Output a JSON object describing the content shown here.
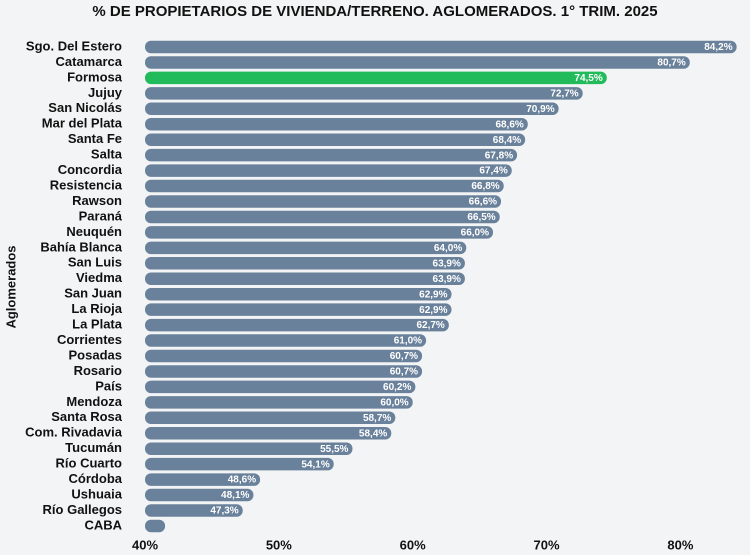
{
  "chart_data": {
    "type": "barh",
    "title": "% DE PROPIETARIOS DE VIVIENDA/TERRENO. AGLOMERADOS. 1° TRIM. 2025",
    "y_label": "Aglomerados",
    "categories": [
      "Sgo. Del Estero",
      "Catamarca",
      "Formosa",
      "Jujuy",
      "San Nicolás",
      "Mar del Plata",
      "Santa Fe",
      "Salta",
      "Concordia",
      "Resistencia",
      "Rawson",
      "Paraná",
      "Neuquén",
      "Bahía Blanca",
      "San Luis",
      "Viedma",
      "San Juan",
      "La Rioja",
      "La Plata",
      "Corrientes",
      "Posadas",
      "Rosario",
      "País",
      "Mendoza",
      "Santa Rosa",
      "Com. Rivadavia",
      "Tucumán",
      "Río Cuarto",
      "Córdoba",
      "Ushuaia",
      "Río Gallegos",
      "CABA"
    ],
    "values": [
      84.2,
      80.7,
      74.5,
      72.7,
      70.9,
      68.6,
      68.4,
      67.8,
      67.4,
      66.8,
      66.6,
      66.5,
      66.0,
      64.0,
      63.9,
      63.9,
      62.9,
      62.9,
      62.7,
      61.0,
      60.7,
      60.7,
      60.2,
      60.0,
      58.7,
      58.4,
      55.5,
      54.1,
      48.6,
      48.1,
      47.3,
      41.5
    ],
    "value_labels": [
      "84,2%",
      "80,7%",
      "74,5%",
      "72,7%",
      "70,9%",
      "68,6%",
      "68,4%",
      "67,8%",
      "67,4%",
      "66,8%",
      "66,6%",
      "66,5%",
      "66,0%",
      "64,0%",
      "63,9%",
      "63,9%",
      "62,9%",
      "62,9%",
      "62,7%",
      "61,0%",
      "60,7%",
      "60,7%",
      "60,2%",
      "60,0%",
      "58,7%",
      "58,4%",
      "55,5%",
      "54,1%",
      "48,6%",
      "48,1%",
      "47,3%",
      null
    ],
    "colors": [
      "#6a819b",
      "#6a819b",
      "#22bb5c",
      "#6a819b",
      "#6a819b",
      "#6a819b",
      "#6a819b",
      "#6a819b",
      "#6a819b",
      "#6a819b",
      "#6a819b",
      "#6a819b",
      "#6a819b",
      "#6a819b",
      "#6a819b",
      "#6a819b",
      "#6a819b",
      "#6a819b",
      "#6a819b",
      "#6a819b",
      "#6a819b",
      "#6a819b",
      "#6a819b",
      "#6a819b",
      "#6a819b",
      "#6a819b",
      "#6a819b",
      "#6a819b",
      "#6a819b",
      "#6a819b",
      "#6a819b",
      "#6a819b"
    ],
    "xlim": [
      40,
      85.2
    ],
    "xticks": [
      {
        "value": 40,
        "label": "40%"
      },
      {
        "value": 50,
        "label": "50%"
      },
      {
        "value": 60,
        "label": "60%"
      },
      {
        "value": 70,
        "label": "70%"
      },
      {
        "value": 80,
        "label": "80%"
      }
    ]
  }
}
